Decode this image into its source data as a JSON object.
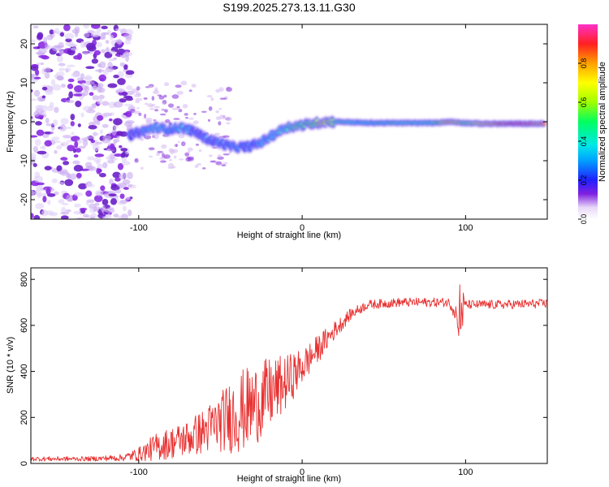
{
  "figure_title": "S199.2025.273.13.11.G30",
  "chart_data": [
    {
      "type": "heatmap",
      "title": "S199.2025.273.13.11.G30",
      "xlabel": "Height of straight line (km)",
      "ylabel": "Frequency (Hz)",
      "xlim": [
        -166,
        150
      ],
      "ylim": [
        -25,
        25
      ],
      "xticks": [
        -100,
        0,
        100
      ],
      "yticks": [
        -20,
        -10,
        0,
        10,
        20
      ],
      "colorbar": {
        "label": "Normalized spectral amplitude",
        "range": [
          0,
          1
        ],
        "ticks": [
          0.0,
          0.2,
          0.4,
          0.6,
          0.8
        ],
        "tick_labels": [
          "0.0",
          "0.2",
          "0.4",
          "0.6",
          "0.8"
        ],
        "colormap": [
          "#ffffff",
          "#c8a8f0",
          "#8020e0",
          "#2020ff",
          "#00a0ff",
          "#00e8e8",
          "#00ff60",
          "#a0ff00",
          "#ffff00",
          "#ffa000",
          "#ff2020",
          "#ff30c8"
        ]
      },
      "ridge_line": {
        "x": [
          -106,
          -98,
          -90,
          -82,
          -74,
          -66,
          -58,
          -50,
          -42,
          -34,
          -26,
          -18,
          -10,
          -2,
          6,
          14,
          22,
          40,
          60,
          80,
          90,
          100,
          110,
          120,
          130,
          140,
          148
        ],
        "frequency_hz": [
          -3.5,
          -2.5,
          -1.5,
          -2,
          -1.5,
          -2.5,
          -4.5,
          -5.5,
          -6.5,
          -6.5,
          -5.5,
          -3.5,
          -1.5,
          -1.0,
          -0.5,
          0,
          0,
          -0.3,
          -0.3,
          -0.3,
          0,
          -0.3,
          -0.5,
          -0.5,
          -0.5,
          -0.5,
          -0.5
        ],
        "amplitude": [
          0.25,
          0.3,
          0.45,
          0.35,
          0.4,
          0.3,
          0.3,
          0.3,
          0.35,
          0.3,
          0.35,
          0.4,
          0.5,
          0.55,
          0.6,
          0.7,
          0.5,
          0.45,
          0.5,
          0.5,
          0.75,
          0.55,
          0.75,
          0.85,
          0.9,
          0.85,
          0.8
        ]
      },
      "noise_region_x": [
        -166,
        -104
      ],
      "grid": false
    },
    {
      "type": "line",
      "xlabel": "Height of straight line (km)",
      "ylabel": "SNR (10 * v/v)",
      "xlim": [
        -166,
        150
      ],
      "ylim": [
        0,
        850
      ],
      "xticks": [
        -100,
        0,
        100
      ],
      "yticks": [
        0,
        200,
        400,
        600,
        800
      ],
      "color": "#e83030",
      "series": [
        {
          "name": "SNR",
          "envelope_x": [
            -166,
            -130,
            -110,
            -100,
            -90,
            -80,
            -70,
            -60,
            -50,
            -40,
            -30,
            -20,
            -10,
            0,
            10,
            20,
            30,
            40,
            60,
            80,
            90,
            95,
            97,
            100,
            120,
            150
          ],
          "mean_snr": [
            20,
            20,
            25,
            40,
            70,
            90,
            110,
            140,
            180,
            220,
            250,
            300,
            350,
            420,
            500,
            580,
            650,
            690,
            700,
            700,
            700,
            650,
            650,
            690,
            690,
            695
          ],
          "spread": [
            10,
            10,
            15,
            30,
            60,
            70,
            80,
            100,
            130,
            180,
            180,
            160,
            120,
            80,
            60,
            40,
            25,
            20,
            20,
            20,
            20,
            50,
            150,
            20,
            20,
            20
          ]
        }
      ],
      "grid": false
    }
  ]
}
